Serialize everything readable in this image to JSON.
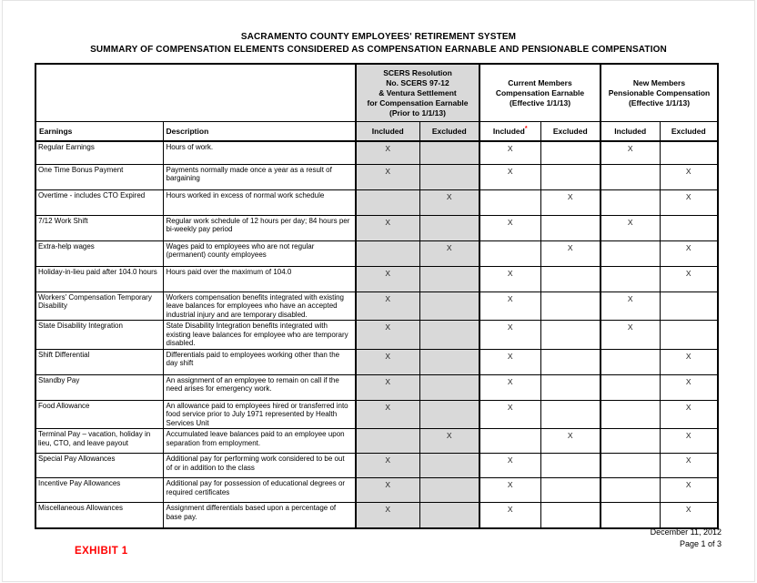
{
  "title": {
    "line1": "SACRAMENTO COUNTY EMPLOYEES' RETIREMENT SYSTEM",
    "line2": "SUMMARY OF COMPENSATION ELEMENTS CONSIDERED AS COMPENSATION EARNABLE AND PENSIONABLE COMPENSATION"
  },
  "table": {
    "groups": [
      {
        "lines": [
          "SCERS Resolution",
          "No. SCERS 97-12",
          "& Ventura Settlement",
          "for Compensation Earnable",
          "(Prior to 1/1/13)"
        ]
      },
      {
        "lines": [
          "Current Members",
          "Compensation Earnable",
          "(Effective 1/1/13)"
        ]
      },
      {
        "lines": [
          "New Members",
          "Pensionable Compensation",
          "(Effective 1/1/13)"
        ]
      }
    ],
    "headers": {
      "earnings": "Earnings",
      "description": "Description",
      "sub": [
        "Included",
        "Excluded",
        "Included",
        "Excluded",
        "Included",
        "Excluded"
      ],
      "current_included_asterisk": "*"
    },
    "rows": [
      {
        "earnings": "Regular Earnings",
        "description": "Hours of work.",
        "marks": [
          "X",
          "",
          "X",
          "",
          "X",
          ""
        ]
      },
      {
        "earnings": "One Time Bonus Payment",
        "description": "Payments normally made once a year as a result of bargaining",
        "marks": [
          "X",
          "",
          "X",
          "",
          "",
          "X"
        ]
      },
      {
        "earnings": "Overtime - includes CTO Expired",
        "description": "Hours worked in excess of normal work schedule",
        "marks": [
          "",
          "X",
          "",
          "X",
          "",
          "X"
        ]
      },
      {
        "earnings": "7/12 Work Shift",
        "description": "Regular work schedule of 12 hours per day; 84 hours per bi-weekly pay period",
        "marks": [
          "X",
          "",
          "X",
          "",
          "X",
          ""
        ]
      },
      {
        "earnings": "Extra-help wages",
        "description": "Wages paid to employees who are not regular (permanent) county employees",
        "marks": [
          "",
          "X",
          "",
          "X",
          "",
          "X"
        ]
      },
      {
        "earnings": "Holiday-in-lieu paid after 104.0 hours",
        "description": "Hours paid over the maximum of 104.0",
        "marks": [
          "X",
          "",
          "X",
          "",
          "",
          "X"
        ]
      },
      {
        "earnings": "Workers' Compensation Temporary Disability",
        "description": "Workers compensation benefits integrated with existing leave balances for employees who have an accepted industrial injury and are temporary disabled.",
        "marks": [
          "X",
          "",
          "X",
          "",
          "X",
          ""
        ]
      },
      {
        "earnings": "State Disability Integration",
        "description": "State Disability Integration benefits integrated with existing leave balances for employee who are temporary disabled.",
        "marks": [
          "X",
          "",
          "X",
          "",
          "X",
          ""
        ]
      },
      {
        "earnings": "Shift Differential",
        "description": "Differentials paid to employees working other than the day shift",
        "marks": [
          "X",
          "",
          "X",
          "",
          "",
          "X"
        ]
      },
      {
        "earnings": "Standby Pay",
        "description": "An assignment of an employee to remain on call if the need arises for emergency work.",
        "marks": [
          "X",
          "",
          "X",
          "",
          "",
          "X"
        ]
      },
      {
        "earnings": "Food Allowance",
        "description": "An allowance paid to employees hired or transferred into food service prior to July 1971 represented by Health Services Unit",
        "marks": [
          "X",
          "",
          "X",
          "",
          "",
          "X"
        ]
      },
      {
        "earnings": "Terminal Pay – vacation, holiday in lieu, CTO, and leave payout",
        "description": "Accumulated leave balances paid to an employee upon separation from employment.",
        "marks": [
          "",
          "X",
          "",
          "X",
          "",
          "X"
        ]
      },
      {
        "earnings": "Special Pay Allowances",
        "description": "Additional pay for performing work considered to be out of or in addition to the class",
        "marks": [
          "X",
          "",
          "X",
          "",
          "",
          "X"
        ]
      },
      {
        "earnings": "Incentive Pay Allowances",
        "description": "Additional pay for possession of educational degrees or required certificates",
        "marks": [
          "X",
          "",
          "X",
          "",
          "",
          "X"
        ]
      },
      {
        "earnings": "Miscellaneous Allowances",
        "description": "Assignment differentials based upon a percentage of base pay.",
        "marks": [
          "X",
          "",
          "X",
          "",
          "",
          "X"
        ]
      }
    ]
  },
  "footer": {
    "date": "December 11, 2012",
    "page": "Page 1 of 3",
    "exhibit": "EXHIBIT 1"
  },
  "colors": {
    "shaded_column": "#d9d9d9",
    "exhibit_red": "#ff0000",
    "asterisk_red": "#ff0000"
  }
}
